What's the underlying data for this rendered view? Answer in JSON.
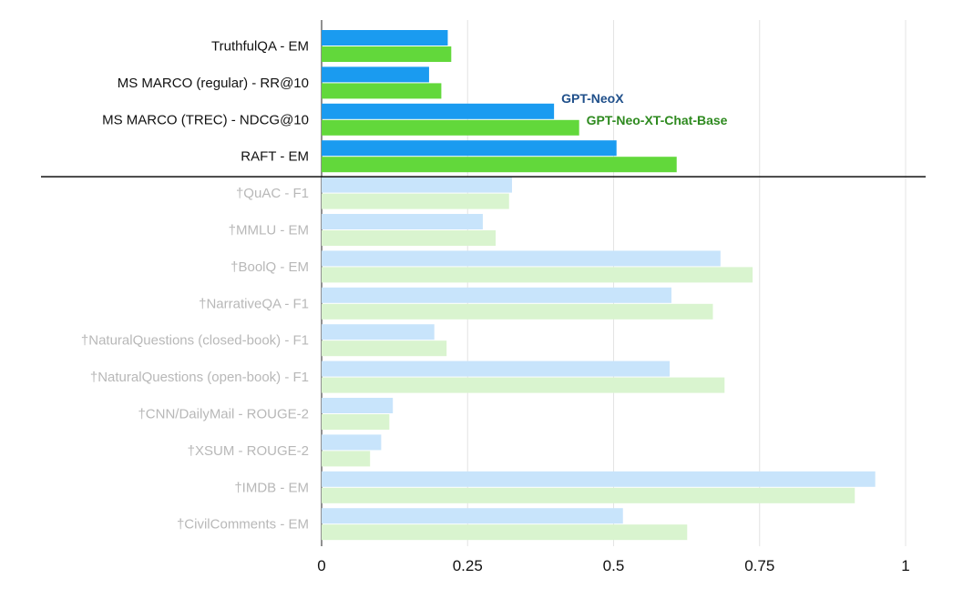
{
  "chart_data": {
    "type": "bar",
    "orientation": "horizontal",
    "title": "",
    "xlabel": "",
    "ylabel": "",
    "xlim": [
      0,
      1
    ],
    "x_ticks": [
      "0",
      "0.25",
      "0.5",
      "0.75",
      "1"
    ],
    "grid": true,
    "categories": [
      "TruthfulQA - EM",
      "MS MARCO (regular) - RR@10",
      "MS MARCO (TREC) - NDCG@10",
      "RAFT - EM",
      "†QuAC - F1",
      "†MMLU - EM",
      "†BoolQ - EM",
      "†NarrativeQA - F1",
      "†NaturalQuestions (closed-book) - F1",
      "†NaturalQuestions (open-book) - F1",
      "†CNN/DailyMail - ROUGE-2",
      "†XSUM - ROUGE-2",
      "†IMDB - EM",
      "†CivilComments - EM"
    ],
    "highlighted_count": 4,
    "series": [
      {
        "name": "GPT-NeoX",
        "color": "#1a9bf0",
        "faded_color": "#c8e4fb",
        "label_color": "#1f4f8a",
        "values": [
          0.216,
          0.184,
          0.398,
          0.505,
          0.326,
          0.276,
          0.683,
          0.599,
          0.193,
          0.596,
          0.122,
          0.102,
          0.948,
          0.516
        ]
      },
      {
        "name": "GPT-Neo-XT-Chat-Base",
        "color": "#62d83b",
        "faded_color": "#d9f4cf",
        "label_color": "#2e8a1f",
        "values": [
          0.222,
          0.205,
          0.441,
          0.608,
          0.321,
          0.298,
          0.738,
          0.67,
          0.214,
          0.69,
          0.116,
          0.083,
          0.913,
          0.626
        ]
      }
    ],
    "series_label_category": "MS MARCO (TREC) - NDCG@10"
  }
}
